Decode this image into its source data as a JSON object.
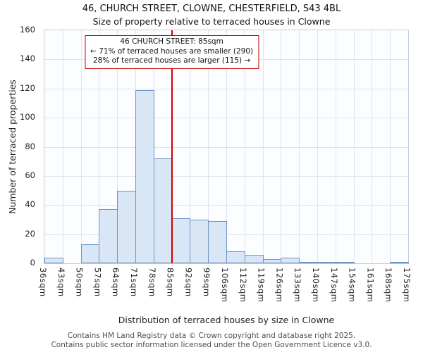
{
  "chart_data": {
    "type": "bar",
    "title": "46, CHURCH STREET, CLOWNE, CHESTERFIELD, S43 4BL",
    "subtitle": "Size of property relative to terraced houses in Clowne",
    "xlabel": "Distribution of terraced houses by size in Clowne",
    "ylabel": "Number of terraced properties",
    "bin_edges": [
      "36sqm",
      "43sqm",
      "50sqm",
      "57sqm",
      "64sqm",
      "71sqm",
      "78sqm",
      "85sqm",
      "92sqm",
      "99sqm",
      "106sqm",
      "112sqm",
      "119sqm",
      "126sqm",
      "133sqm",
      "140sqm",
      "147sqm",
      "154sqm",
      "161sqm",
      "168sqm",
      "175sqm"
    ],
    "values": [
      4,
      0,
      13,
      37,
      50,
      119,
      72,
      31,
      30,
      29,
      8,
      6,
      3,
      4,
      1,
      1,
      1,
      0,
      0,
      1
    ],
    "ylim": [
      0,
      160
    ],
    "ytick_step": 20,
    "grid": true,
    "marker": {
      "edge_index": 7,
      "label": "85sqm"
    },
    "annotation": {
      "line1": "46 CHURCH STREET: 85sqm",
      "line2": "← 71% of terraced houses are smaller (290)",
      "line3": "28% of terraced houses are larger (115) →"
    },
    "colors": {
      "bar_fill": "#d9e6f5",
      "bar_border": "#6d95c5",
      "grid": "#dde3f0",
      "marker": "#cc0000",
      "annotation_border": "#cc0000"
    }
  },
  "footer": {
    "line1": "Contains HM Land Registry data © Crown copyright and database right 2025.",
    "line2": "Contains public sector information licensed under the Open Government Licence v3.0."
  }
}
